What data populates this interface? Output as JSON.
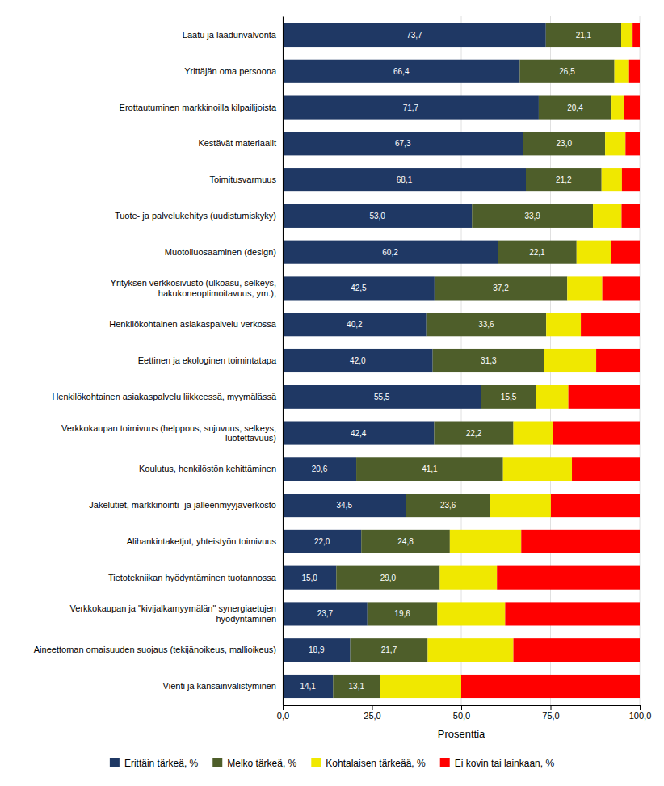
{
  "chart_data": {
    "type": "bar",
    "orientation": "horizontal",
    "stacked": true,
    "grid": true,
    "legend": "bottom",
    "data_labels": true,
    "xlabel": "Prosenttia",
    "categories": [
      "Laatu ja laadunvalvonta",
      "Yrittäjän oma persoona",
      "Erottautuminen markkinoilla kilpailijoista",
      "Kestävät materiaalit",
      "Toimitusvarmuus",
      "Tuote- ja palvelukehitys (uudistumiskyky)",
      "Muotoiluosaaminen (design)",
      "Yrityksen verkkosivusto (ulkoasu, selkeys,\nhakukoneoptimoitavuus, ym.),",
      "Henkilökohtainen asiakaspalvelu verkossa",
      "Eettinen ja ekologinen toimintatapa",
      "Henkilökohtainen asiakaspalvelu liikkeessä, myymälässä",
      "Verkkokaupan toimivuus (helppous, sujuvuus, selkeys,\nluotettavuus)",
      "Koulutus, henkilöstön kehittäminen",
      "Jakelutiet, markkinointi- ja jälleenmyyjäverkosto",
      "Alihankintaketjut, yhteistyön toimivuus",
      "Tietotekniikan hyödyntäminen tuotannossa",
      "Verkkokaupan ja \"kivijalkamyymälän\" synergiaetujen\nhyödyntäminen",
      "Aineettoman omaisuuden suojaus (tekijänoikeus, mallioikeus)",
      "Vienti ja kansainvälistyminen"
    ],
    "series": [
      {
        "name": "Erittäin tärkeä, %",
        "color": "#1F3864",
        "values": [
          73.7,
          66.4,
          71.7,
          67.3,
          68.1,
          53.0,
          60.2,
          42.5,
          40.2,
          42.0,
          55.5,
          42.4,
          20.6,
          34.5,
          22.0,
          15.0,
          23.7,
          18.9,
          14.1
        ],
        "value_labels": [
          "73,7",
          "66,4",
          "71,7",
          "67,3",
          "68,1",
          "53,0",
          "60,2",
          "42,5",
          "40,2",
          "42,0",
          "55,5",
          "42,4",
          "20,6",
          "34,5",
          "22,0",
          "15,0",
          "23,7",
          "18,9",
          "14,1"
        ]
      },
      {
        "name": "Melko tärkeä, %",
        "color": "#4E5E2A",
        "values": [
          21.1,
          26.5,
          20.4,
          23.0,
          21.2,
          33.9,
          22.1,
          37.2,
          33.6,
          31.3,
          15.5,
          22.2,
          41.1,
          23.6,
          24.8,
          29.0,
          19.6,
          21.7,
          13.1
        ],
        "value_labels": [
          "21,1",
          "26,5",
          "20,4",
          "23,0",
          "21,2",
          "33,9",
          "22,1",
          "37,2",
          "33,6",
          "31,3",
          "15,5",
          "22,2",
          "41,1",
          "23,6",
          "24,8",
          "29,0",
          "19,6",
          "21,7",
          "13,1"
        ]
      },
      {
        "name": "Kohtalaisen tärkeää, %",
        "color": "#F0E800",
        "values": [
          3.2,
          4.1,
          3.5,
          5.7,
          5.7,
          8.0,
          9.7,
          9.8,
          9.7,
          14.5,
          9.0,
          11.0,
          19.3,
          17.0,
          20.0,
          16.0,
          19.0,
          24.0,
          22.8
        ]
      },
      {
        "name": "Ei kovin tai lainkaan, %",
        "color": "#FF0000",
        "values": [
          2.0,
          3.0,
          4.4,
          4.0,
          5.0,
          5.1,
          8.0,
          10.5,
          16.5,
          12.2,
          20.0,
          24.4,
          19.0,
          24.9,
          33.2,
          40.0,
          37.7,
          35.4,
          50.0
        ]
      }
    ],
    "xlim": [
      0,
      100
    ],
    "xticks": [
      {
        "value": 0,
        "label": "0,0"
      },
      {
        "value": 25,
        "label": "25,0"
      },
      {
        "value": 50,
        "label": "50,0"
      },
      {
        "value": 75,
        "label": "75,0"
      },
      {
        "value": 100,
        "label": "100,0"
      }
    ]
  }
}
